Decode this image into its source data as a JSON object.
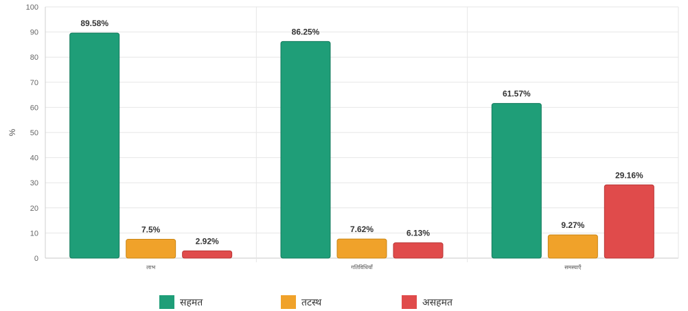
{
  "chart_data": {
    "type": "bar",
    "ylabel": "%",
    "ylim": [
      0,
      100
    ],
    "yticks": [
      0,
      10,
      20,
      30,
      40,
      50,
      60,
      70,
      80,
      90,
      100
    ],
    "categories": [
      "लाभ",
      "गतिविधियाँ",
      "समस्याएँ"
    ],
    "series": [
      {
        "name": "सहमत",
        "color": "#1f9e78",
        "border": "#137a5c",
        "values": [
          89.58,
          86.25,
          61.57
        ],
        "labels": [
          "89.58%",
          "86.25%",
          "61.57%"
        ]
      },
      {
        "name": "तटस्थ",
        "color": "#f0a22a",
        "border": "#c98616",
        "values": [
          7.5,
          7.62,
          9.27
        ],
        "labels": [
          "7.5%",
          "7.62%",
          "9.27%"
        ]
      },
      {
        "name": "असहमत",
        "color": "#e04b4b",
        "border": "#b83434",
        "values": [
          2.92,
          6.13,
          29.16
        ],
        "labels": [
          "2.92%",
          "6.13%",
          "29.16%"
        ]
      }
    ],
    "grid": true,
    "legend_position": "bottom"
  }
}
